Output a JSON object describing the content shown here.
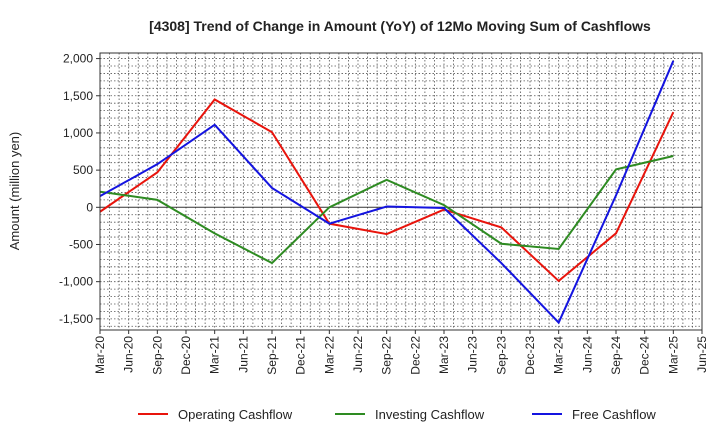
{
  "chart_data": {
    "type": "line",
    "title": "[4308]  Trend of Change in Amount (YoY) of 12Mo Moving Sum of Cashflows",
    "xlabel": "",
    "ylabel": "Amount (million yen)",
    "ylim": [
      -1650,
      2075
    ],
    "yticks": [
      2000,
      1500,
      1000,
      500,
      0,
      -500,
      -1000,
      -1500
    ],
    "ytick_labels": [
      "2,000",
      "1,500",
      "1,000",
      "500",
      "0",
      "-500",
      "-1,000",
      "-1,500"
    ],
    "categories": [
      "Mar-20",
      "Jun-20",
      "Sep-20",
      "Dec-20",
      "Mar-21",
      "Jun-21",
      "Sep-21",
      "Dec-21",
      "Mar-22",
      "Jun-22",
      "Sep-22",
      "Dec-22",
      "Mar-23",
      "Jun-23",
      "Sep-23",
      "Dec-23",
      "Mar-24",
      "Jun-24",
      "Sep-24",
      "Dec-24",
      "Mar-25",
      "Jun-25"
    ],
    "grid": true,
    "legend_position": "bottom",
    "series": [
      {
        "name": "Operating Cashflow",
        "color": "#e8140c",
        "points": [
          [
            "Mar-20",
            -60
          ],
          [
            "Sep-20",
            470
          ],
          [
            "Mar-21",
            1450
          ],
          [
            "Sep-21",
            1010
          ],
          [
            "Mar-22",
            -220
          ],
          [
            "Sep-22",
            -360
          ],
          [
            "Mar-23",
            -30
          ],
          [
            "Sep-23",
            -270
          ],
          [
            "Mar-24",
            -990
          ],
          [
            "Sep-24",
            -350
          ],
          [
            "Mar-25",
            1280
          ]
        ]
      },
      {
        "name": "Investing Cashflow",
        "color": "#2e8b22",
        "points": [
          [
            "Mar-20",
            210
          ],
          [
            "Sep-20",
            100
          ],
          [
            "Mar-21",
            -350
          ],
          [
            "Sep-21",
            -750
          ],
          [
            "Mar-22",
            0
          ],
          [
            "Sep-22",
            370
          ],
          [
            "Mar-23",
            30
          ],
          [
            "Sep-23",
            -490
          ],
          [
            "Mar-24",
            -560
          ],
          [
            "Sep-24",
            510
          ],
          [
            "Mar-25",
            690
          ]
        ]
      },
      {
        "name": "Free Cashflow",
        "color": "#1414e0",
        "points": [
          [
            "Mar-20",
            150
          ],
          [
            "Sep-20",
            580
          ],
          [
            "Mar-21",
            1110
          ],
          [
            "Sep-21",
            260
          ],
          [
            "Mar-22",
            -220
          ],
          [
            "Sep-22",
            10
          ],
          [
            "Mar-23",
            -10
          ],
          [
            "Sep-23",
            -750
          ],
          [
            "Mar-24",
            -1550
          ],
          [
            "Sep-24",
            160
          ],
          [
            "Mar-25",
            1970
          ]
        ]
      }
    ]
  }
}
